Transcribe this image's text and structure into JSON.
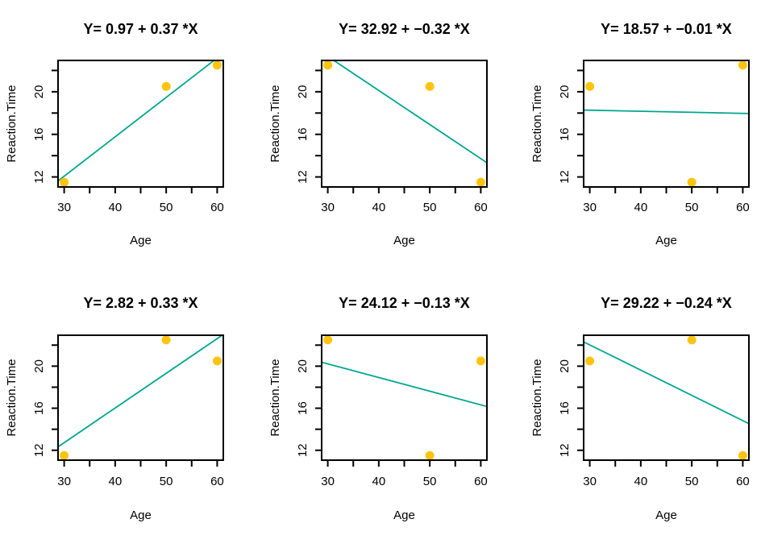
{
  "figure": {
    "background": "#ffffff",
    "point_color": "#FDC40F",
    "line_color": "#00A68F",
    "axis_color": "#000000",
    "text_color": "#000000"
  },
  "chart_data": [
    {
      "type": "scatter",
      "title": "Y= 0.97 + 0.37 *X",
      "xlabel": "Age",
      "ylabel": "Reaction.Time",
      "x": [
        30,
        50,
        60
      ],
      "y": [
        11.5,
        20.5,
        22.5
      ],
      "fit_line": {
        "intercept": 0.97,
        "slope": 0.37
      },
      "xlim": [
        28.8,
        61.2
      ],
      "ylim": [
        11.06,
        22.94
      ],
      "xticks": [
        30,
        35,
        40,
        45,
        50,
        55,
        60
      ],
      "xtick_label_values": [
        30,
        40,
        50,
        60
      ],
      "xtick_labels": [
        "30",
        "40",
        "50",
        "60"
      ],
      "yticks": [
        12,
        14,
        16,
        18,
        20,
        22
      ],
      "ytick_label_values": [
        12,
        16,
        20
      ],
      "ytick_labels": [
        "12",
        "16",
        "20"
      ],
      "grid": false,
      "legend": null
    },
    {
      "type": "scatter",
      "title": "Y= 32.92 + −0.32 *X",
      "xlabel": "Age",
      "ylabel": "Reaction.Time",
      "x": [
        30,
        50,
        60
      ],
      "y": [
        22.5,
        20.5,
        11.5
      ],
      "fit_line": {
        "intercept": 32.92,
        "slope": -0.32
      },
      "xlim": [
        28.8,
        61.2
      ],
      "ylim": [
        11.06,
        22.94
      ],
      "xticks": [
        30,
        35,
        40,
        45,
        50,
        55,
        60
      ],
      "xtick_label_values": [
        30,
        40,
        50,
        60
      ],
      "xtick_labels": [
        "30",
        "40",
        "50",
        "60"
      ],
      "yticks": [
        12,
        14,
        16,
        18,
        20,
        22
      ],
      "ytick_label_values": [
        12,
        16,
        20
      ],
      "ytick_labels": [
        "12",
        "16",
        "20"
      ],
      "grid": false,
      "legend": null
    },
    {
      "type": "scatter",
      "title": "Y= 18.57 + −0.01 *X",
      "xlabel": "Age",
      "ylabel": "Reaction.Time",
      "x": [
        30,
        50,
        60
      ],
      "y": [
        20.5,
        11.5,
        22.5
      ],
      "fit_line": {
        "intercept": 18.57,
        "slope": -0.01
      },
      "xlim": [
        28.8,
        61.2
      ],
      "ylim": [
        11.06,
        22.94
      ],
      "xticks": [
        30,
        35,
        40,
        45,
        50,
        55,
        60
      ],
      "xtick_label_values": [
        30,
        40,
        50,
        60
      ],
      "xtick_labels": [
        "30",
        "40",
        "50",
        "60"
      ],
      "yticks": [
        12,
        14,
        16,
        18,
        20,
        22
      ],
      "ytick_label_values": [
        12,
        16,
        20
      ],
      "ytick_labels": [
        "12",
        "16",
        "20"
      ],
      "grid": false,
      "legend": null
    },
    {
      "type": "scatter",
      "title": "Y= 2.82 + 0.33 *X",
      "xlabel": "Age",
      "ylabel": "Reaction.Time",
      "x": [
        30,
        50,
        60
      ],
      "y": [
        11.5,
        22.5,
        20.5
      ],
      "fit_line": {
        "intercept": 2.82,
        "slope": 0.33
      },
      "xlim": [
        28.8,
        61.2
      ],
      "ylim": [
        11.06,
        22.94
      ],
      "xticks": [
        30,
        35,
        40,
        45,
        50,
        55,
        60
      ],
      "xtick_label_values": [
        30,
        40,
        50,
        60
      ],
      "xtick_labels": [
        "30",
        "40",
        "50",
        "60"
      ],
      "yticks": [
        12,
        14,
        16,
        18,
        20,
        22
      ],
      "ytick_label_values": [
        12,
        16,
        20
      ],
      "ytick_labels": [
        "12",
        "16",
        "20"
      ],
      "grid": false,
      "legend": null
    },
    {
      "type": "scatter",
      "title": "Y= 24.12 + −0.13 *X",
      "xlabel": "Age",
      "ylabel": "Reaction.Time",
      "x": [
        30,
        50,
        60
      ],
      "y": [
        22.5,
        11.5,
        20.5
      ],
      "fit_line": {
        "intercept": 24.12,
        "slope": -0.13
      },
      "xlim": [
        28.8,
        61.2
      ],
      "ylim": [
        11.06,
        22.94
      ],
      "xticks": [
        30,
        35,
        40,
        45,
        50,
        55,
        60
      ],
      "xtick_label_values": [
        30,
        40,
        50,
        60
      ],
      "xtick_labels": [
        "30",
        "40",
        "50",
        "60"
      ],
      "yticks": [
        12,
        14,
        16,
        18,
        20,
        22
      ],
      "ytick_label_values": [
        12,
        16,
        20
      ],
      "ytick_labels": [
        "12",
        "16",
        "20"
      ],
      "grid": false,
      "legend": null
    },
    {
      "type": "scatter",
      "title": "Y= 29.22 + −0.24 *X",
      "xlabel": "Age",
      "ylabel": "Reaction.Time",
      "x": [
        30,
        50,
        60
      ],
      "y": [
        20.5,
        22.5,
        11.5
      ],
      "fit_line": {
        "intercept": 29.22,
        "slope": -0.24
      },
      "xlim": [
        28.8,
        61.2
      ],
      "ylim": [
        11.06,
        22.94
      ],
      "xticks": [
        30,
        35,
        40,
        45,
        50,
        55,
        60
      ],
      "xtick_label_values": [
        30,
        40,
        50,
        60
      ],
      "xtick_labels": [
        "30",
        "40",
        "50",
        "60"
      ],
      "yticks": [
        12,
        14,
        16,
        18,
        20,
        22
      ],
      "ytick_label_values": [
        12,
        16,
        20
      ],
      "ytick_labels": [
        "12",
        "16",
        "20"
      ],
      "grid": false,
      "legend": null
    }
  ]
}
